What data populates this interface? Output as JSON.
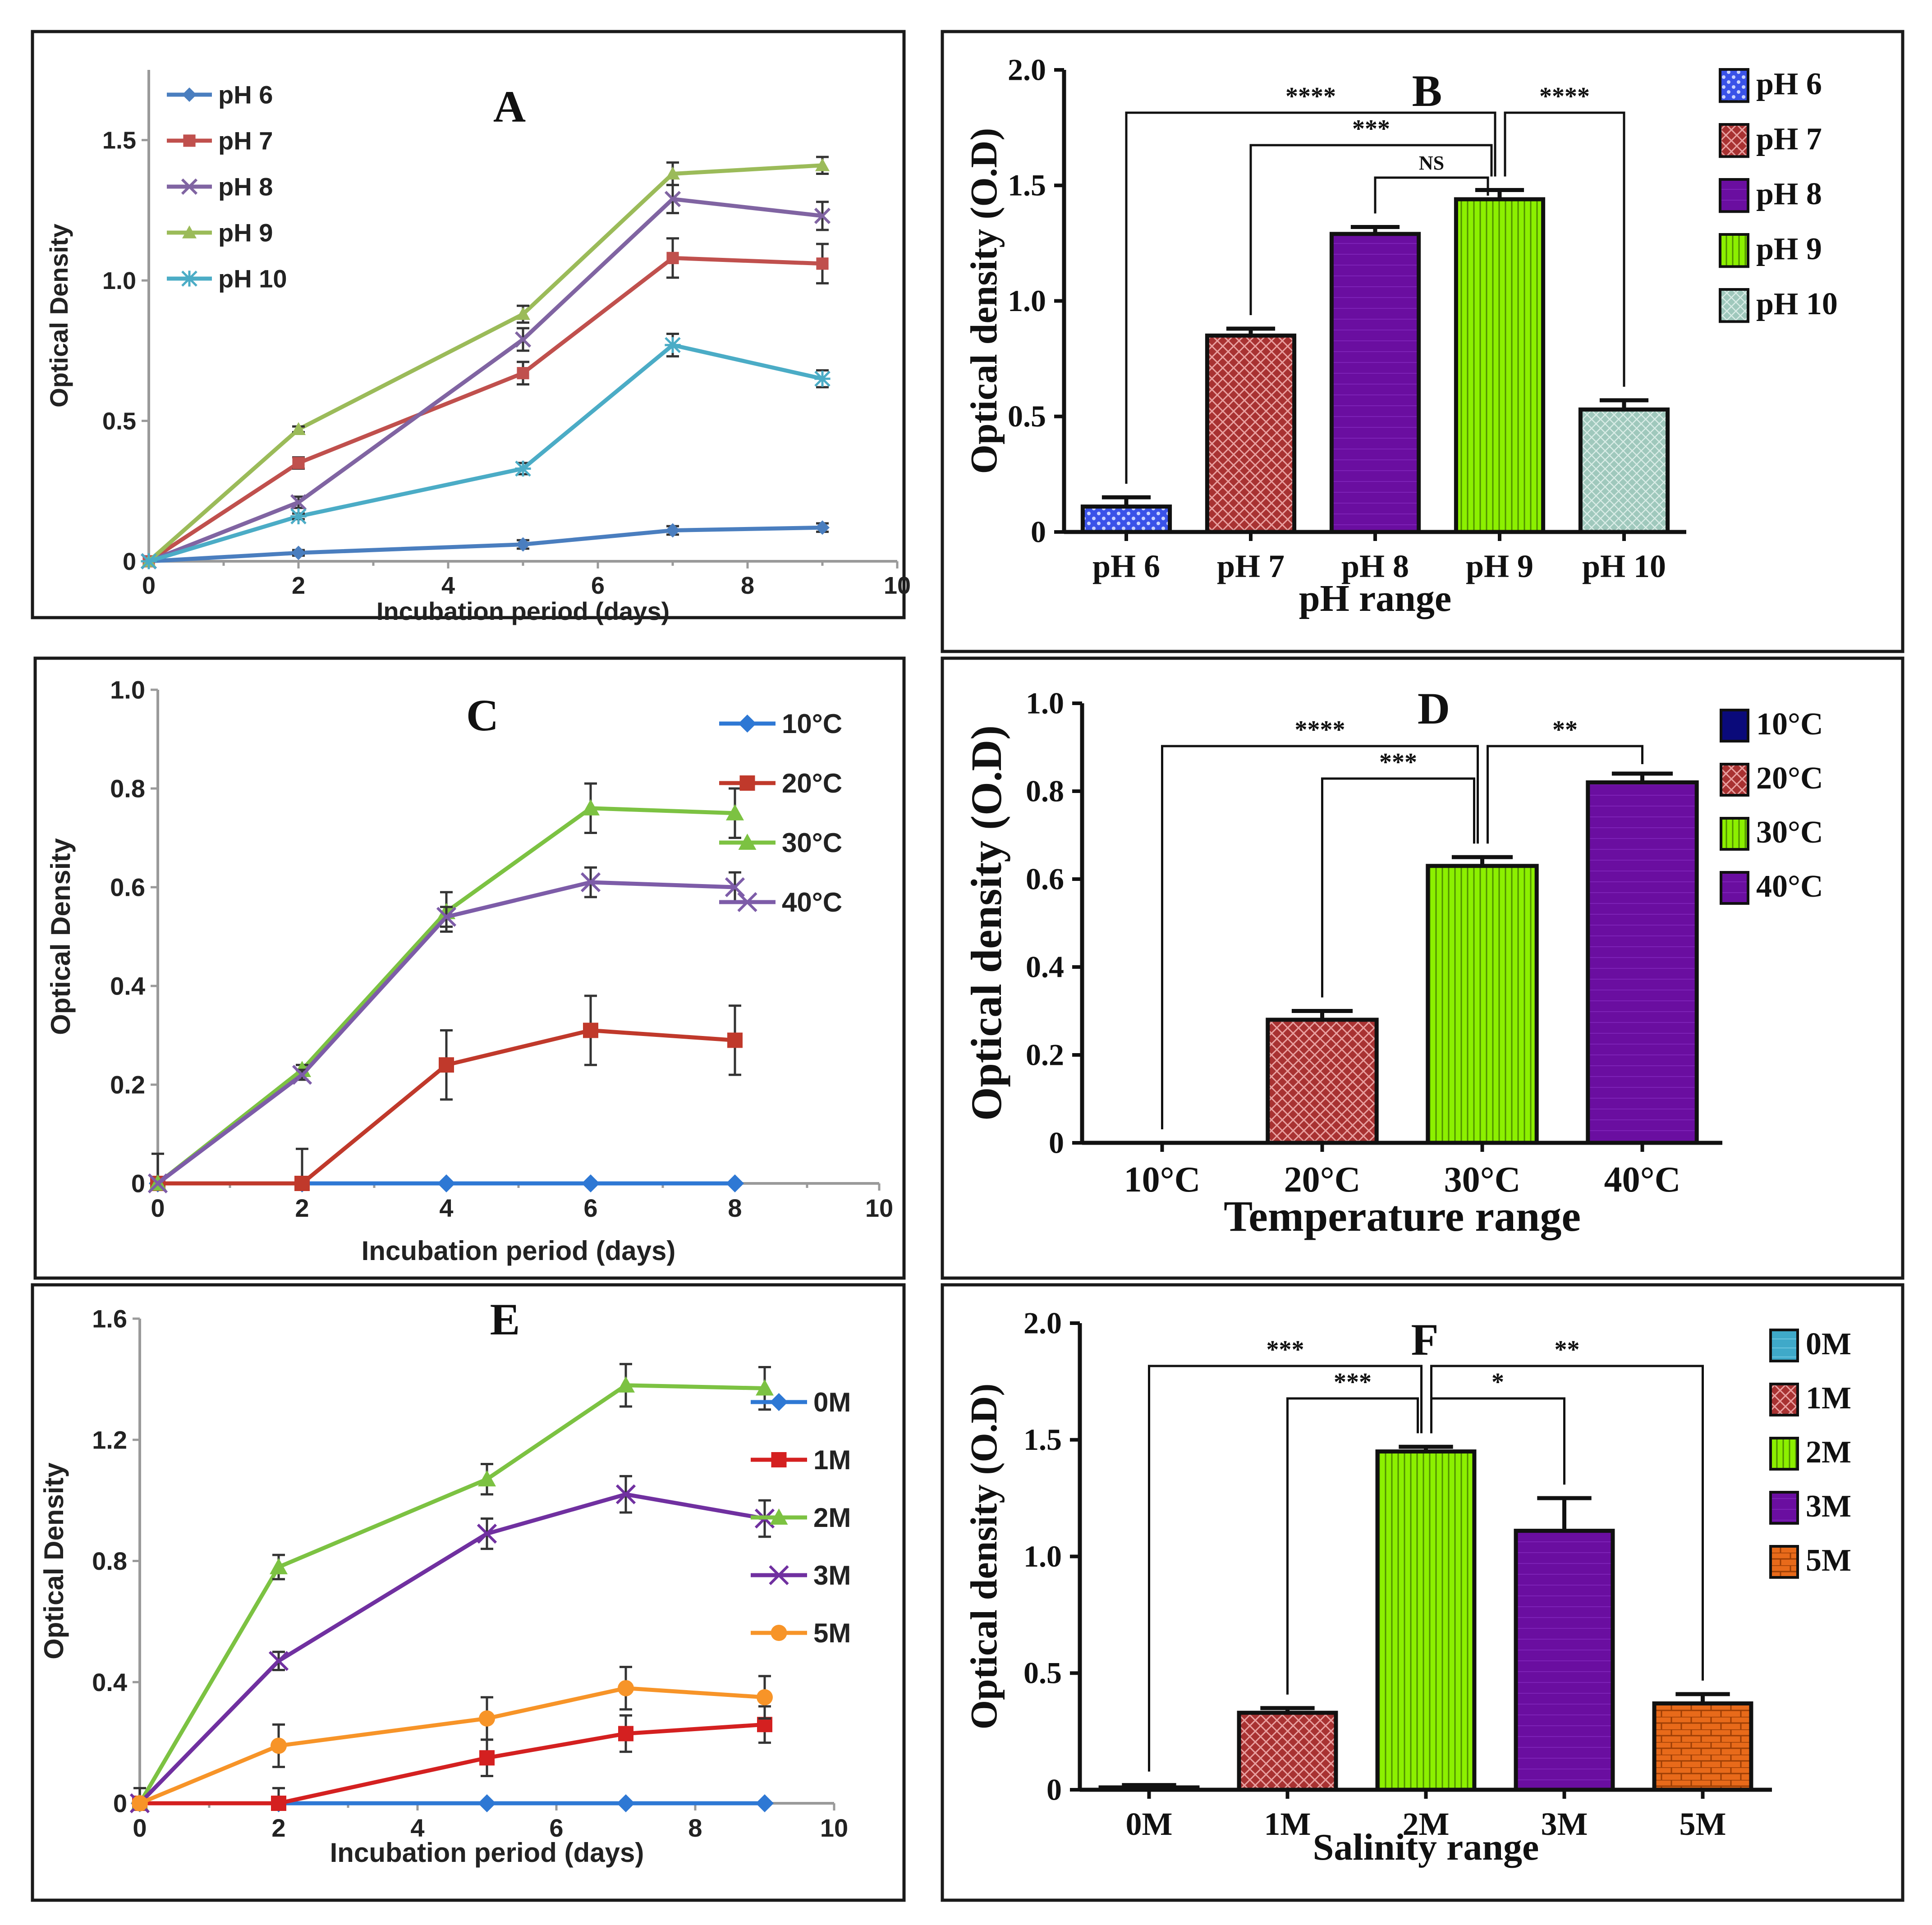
{
  "chart_data": [
    {
      "panel": "A",
      "type": "line",
      "title": "A",
      "xlabel": "Incubation period (days)",
      "ylabel": "Optical Density",
      "xlim": [
        0,
        10
      ],
      "ylim": [
        0,
        1.75
      ],
      "xticks": [
        0,
        2,
        4,
        6,
        8,
        10
      ],
      "xtick_labels": [
        "0",
        "2",
        "4",
        "6",
        "8",
        "10"
      ],
      "yticks": [
        0,
        0.5,
        1.0,
        1.5
      ],
      "ytick_labels": [
        "0",
        "0.5",
        "1.0",
        "1.5"
      ],
      "legend_position": "top-left",
      "series": [
        {
          "name": "pH 6",
          "color": "#4a7ebf",
          "marker": "diamond",
          "x": [
            0,
            2,
            5,
            7,
            9
          ],
          "values": [
            0,
            0.03,
            0.06,
            0.11,
            0.12
          ],
          "errors": [
            0,
            0.01,
            0.015,
            0.015,
            0.015
          ]
        },
        {
          "name": "pH 7",
          "color": "#c0504d",
          "marker": "square",
          "x": [
            0,
            2,
            5,
            7,
            9
          ],
          "values": [
            0,
            0.35,
            0.67,
            1.08,
            1.06
          ],
          "errors": [
            0,
            0.02,
            0.04,
            0.07,
            0.07
          ]
        },
        {
          "name": "pH 8",
          "color": "#8064a2",
          "marker": "x",
          "x": [
            0,
            2,
            5,
            7,
            9
          ],
          "values": [
            0,
            0.21,
            0.79,
            1.29,
            1.23
          ],
          "errors": [
            0,
            0.02,
            0.04,
            0.05,
            0.05
          ]
        },
        {
          "name": "pH 9",
          "color": "#9bbb59",
          "marker": "triangle",
          "x": [
            0,
            2,
            5,
            7,
            9
          ],
          "values": [
            0,
            0.47,
            0.88,
            1.38,
            1.41
          ],
          "errors": [
            0,
            0.01,
            0.03,
            0.04,
            0.03
          ]
        },
        {
          "name": "pH 10",
          "color": "#4bacc6",
          "marker": "star",
          "x": [
            0,
            2,
            5,
            7,
            9
          ],
          "values": [
            0,
            0.16,
            0.33,
            0.77,
            0.65
          ],
          "errors": [
            0,
            0.01,
            0.02,
            0.04,
            0.03
          ]
        }
      ]
    },
    {
      "panel": "B",
      "type": "bar",
      "title": "B",
      "xlabel": "pH range",
      "ylabel": "Optical density (O.D)",
      "ylim": [
        0,
        2.0
      ],
      "yticks": [
        0,
        0.5,
        1.0,
        1.5,
        2.0
      ],
      "ytick_labels": [
        "0",
        "0.5",
        "1.0",
        "1.5",
        "2.0"
      ],
      "legend_position": "right",
      "categories": [
        "pH 6",
        "pH 7",
        "pH 8",
        "pH 9",
        "pH 10"
      ],
      "values": [
        0.11,
        0.85,
        1.29,
        1.44,
        0.53
      ],
      "errors": [
        0.04,
        0.03,
        0.03,
        0.04,
        0.04
      ],
      "colors": [
        "#3a52e8",
        "#a83232",
        "#6a0ea0",
        "#8cf000",
        "#9fc8bc"
      ],
      "annotations": [
        {
          "from": 0,
          "to": 3,
          "label": "****"
        },
        {
          "from": 1,
          "to": 3,
          "label": "***"
        },
        {
          "from": 2,
          "to": 3,
          "label": "NS"
        },
        {
          "from": 3,
          "to": 4,
          "label": "****"
        }
      ]
    },
    {
      "panel": "C",
      "type": "line",
      "title": "C",
      "xlabel": "Incubation period (days)",
      "ylabel": "Optical Density",
      "xlim": [
        0,
        10
      ],
      "ylim": [
        0,
        1.0
      ],
      "xticks": [
        0,
        2,
        4,
        6,
        8,
        10
      ],
      "xtick_labels": [
        "0",
        "2",
        "4",
        "6",
        "8",
        "10"
      ],
      "yticks": [
        0,
        0.2,
        0.4,
        0.6,
        0.8,
        1.0
      ],
      "ytick_labels": [
        "0",
        "0.2",
        "0.4",
        "0.6",
        "0.8",
        "1.0"
      ],
      "legend_position": "right",
      "series": [
        {
          "name": "10°C",
          "color": "#2e78d4",
          "marker": "diamond",
          "x": [
            0,
            2,
            4,
            6,
            8
          ],
          "values": [
            0,
            0,
            0,
            0,
            0
          ],
          "errors": [
            0,
            0,
            0,
            0,
            0
          ]
        },
        {
          "name": "20°C",
          "color": "#c0392b",
          "marker": "square",
          "x": [
            0,
            2,
            4,
            6,
            8
          ],
          "values": [
            0,
            0,
            0.24,
            0.31,
            0.29
          ],
          "errors": [
            0.06,
            0.07,
            0.07,
            0.07,
            0.07
          ]
        },
        {
          "name": "30°C",
          "color": "#7cc242",
          "marker": "triangle",
          "x": [
            0,
            2,
            4,
            6,
            8
          ],
          "values": [
            0,
            0.23,
            0.55,
            0.76,
            0.75
          ],
          "errors": [
            0,
            0.01,
            0.04,
            0.05,
            0.05
          ]
        },
        {
          "name": "40°C",
          "color": "#7d5ca8",
          "marker": "x",
          "x": [
            0,
            2,
            4,
            6,
            8
          ],
          "values": [
            0,
            0.22,
            0.54,
            0.61,
            0.6
          ],
          "errors": [
            0,
            0.01,
            0.02,
            0.03,
            0.03
          ]
        }
      ]
    },
    {
      "panel": "D",
      "type": "bar",
      "title": "D",
      "xlabel": "Temperature range",
      "ylabel": "Optical density (O.D)",
      "ylim": [
        0,
        1.0
      ],
      "yticks": [
        0,
        0.2,
        0.4,
        0.6,
        0.8,
        1.0
      ],
      "ytick_labels": [
        "0",
        "0.2",
        "0.4",
        "0.6",
        "0.8",
        "1.0"
      ],
      "legend_position": "right",
      "categories": [
        "10°C",
        "20°C",
        "30°C",
        "40°C"
      ],
      "values": [
        0,
        0.28,
        0.63,
        0.82
      ],
      "errors": [
        0,
        0.02,
        0.02,
        0.02
      ],
      "colors": [
        "#0a0a7a",
        "#a83232",
        "#8cf000",
        "#6a0ea0"
      ],
      "annotations": [
        {
          "from": 0,
          "to": 2,
          "label": "****"
        },
        {
          "from": 1,
          "to": 2,
          "label": "***"
        },
        {
          "from": 2,
          "to": 3,
          "label": "**"
        }
      ]
    },
    {
      "panel": "E",
      "type": "line",
      "title": "E",
      "xlabel": "Incubation period (days)",
      "ylabel": "Optical Density",
      "xlim": [
        0,
        10
      ],
      "ylim": [
        0,
        1.6
      ],
      "xticks": [
        0,
        2,
        4,
        6,
        8,
        10
      ],
      "xtick_labels": [
        "0",
        "2",
        "4",
        "6",
        "8",
        "10"
      ],
      "yticks": [
        0,
        0.4,
        0.8,
        1.2,
        1.6
      ],
      "ytick_labels": [
        "0",
        "0.4",
        "0.8",
        "1.2",
        "1.6"
      ],
      "legend_position": "right",
      "series": [
        {
          "name": "0M",
          "color": "#2e78d4",
          "marker": "diamond",
          "x": [
            0,
            2,
            5,
            7,
            9
          ],
          "values": [
            0,
            0,
            0,
            0,
            0
          ],
          "errors": [
            0,
            0,
            0,
            0,
            0
          ]
        },
        {
          "name": "1M",
          "color": "#d42020",
          "marker": "square",
          "x": [
            0,
            2,
            5,
            7,
            9
          ],
          "values": [
            0,
            0,
            0.15,
            0.23,
            0.26
          ],
          "errors": [
            0.05,
            0.05,
            0.06,
            0.06,
            0.06
          ]
        },
        {
          "name": "2M",
          "color": "#7cc242",
          "marker": "triangle",
          "x": [
            0,
            2,
            5,
            7,
            9
          ],
          "values": [
            0,
            0.78,
            1.07,
            1.38,
            1.37
          ],
          "errors": [
            0,
            0.04,
            0.05,
            0.07,
            0.07
          ]
        },
        {
          "name": "3M",
          "color": "#7030a0",
          "marker": "x",
          "x": [
            0,
            2,
            5,
            7,
            9
          ],
          "values": [
            0,
            0.47,
            0.89,
            1.02,
            0.94
          ],
          "errors": [
            0,
            0.03,
            0.05,
            0.06,
            0.06
          ]
        },
        {
          "name": "5M",
          "color": "#f79428",
          "marker": "circle",
          "x": [
            0,
            2,
            5,
            7,
            9
          ],
          "values": [
            0,
            0.19,
            0.28,
            0.38,
            0.35
          ],
          "errors": [
            0,
            0.07,
            0.07,
            0.07,
            0.07
          ]
        }
      ]
    },
    {
      "panel": "F",
      "type": "bar",
      "title": "F",
      "xlabel": "Salinity range",
      "ylabel": "Optical density (O.D)",
      "ylim": [
        0,
        2.0
      ],
      "yticks": [
        0,
        0.5,
        1.0,
        1.5,
        2.0
      ],
      "ytick_labels": [
        "0",
        "0.5",
        "1.0",
        "1.5",
        "2.0"
      ],
      "legend_position": "right",
      "categories": [
        "0M",
        "1M",
        "2M",
        "3M",
        "5M"
      ],
      "values": [
        0.01,
        0.33,
        1.45,
        1.11,
        0.37
      ],
      "errors": [
        0.01,
        0.02,
        0.02,
        0.14,
        0.04
      ],
      "colors": [
        "#3fa9c9",
        "#a83232",
        "#8cf000",
        "#6a0ea0",
        "#e86a1a"
      ],
      "annotations": [
        {
          "from": 0,
          "to": 2,
          "label": "***"
        },
        {
          "from": 1,
          "to": 2,
          "label": "***"
        },
        {
          "from": 2,
          "to": 3,
          "label": "*"
        },
        {
          "from": 2,
          "to": 4,
          "label": "**"
        }
      ]
    }
  ]
}
